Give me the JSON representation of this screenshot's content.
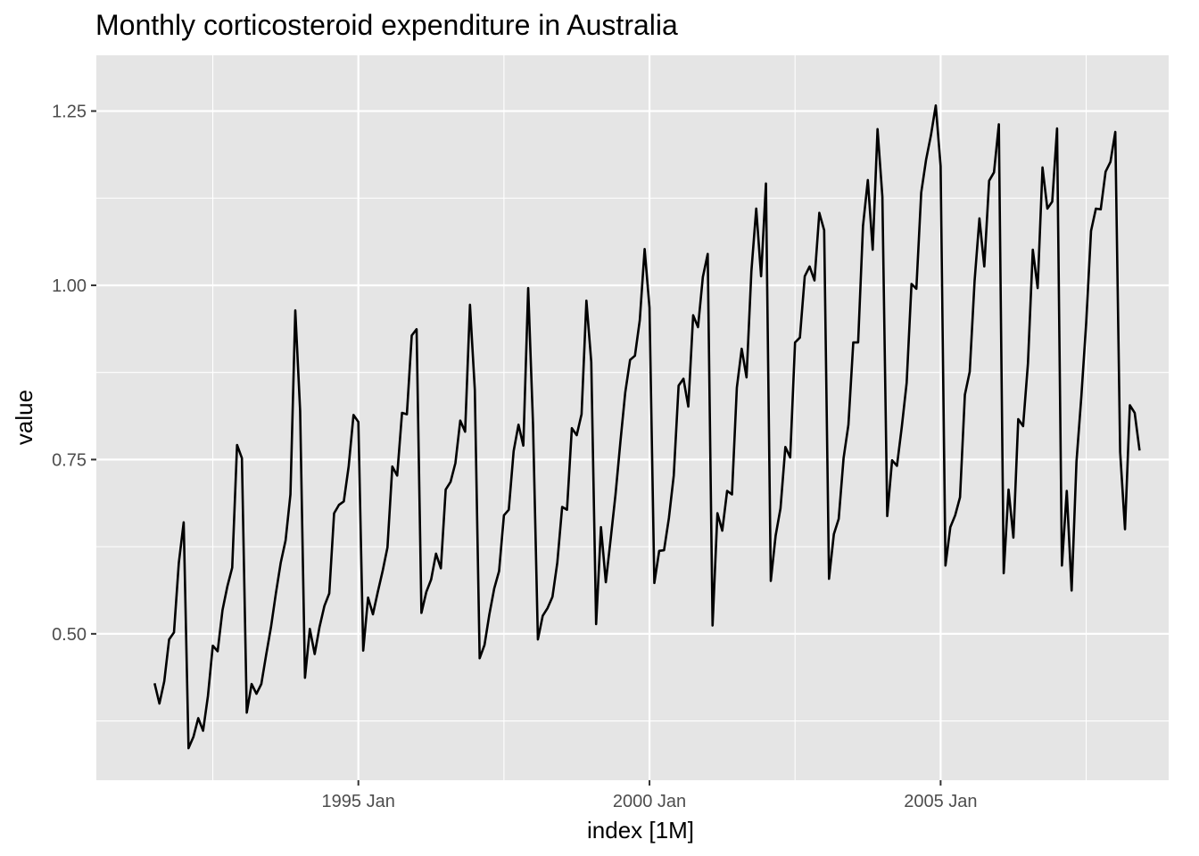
{
  "chart_data": {
    "type": "line",
    "title": "Monthly corticosteroid expenditure in Australia",
    "xlabel": "index [1M]",
    "ylabel": "value",
    "x_start": "1991 Jul",
    "x_end": "2008 Jun",
    "x_interval": "1 month",
    "xlim": [
      "1990 Jul",
      "2008 Dec"
    ],
    "ylim": [
      0.29,
      1.33
    ],
    "x_ticks": [
      {
        "date": "1995 Jan",
        "label": "1995 Jan"
      },
      {
        "date": "2000 Jan",
        "label": "2000 Jan"
      },
      {
        "date": "2005 Jan",
        "label": "2005 Jan"
      }
    ],
    "x_minor_ticks": [
      "1992 Jul",
      "1997 Jul",
      "2002 Jul",
      "2007 Jul"
    ],
    "y_ticks": [
      0.5,
      0.75,
      1.0,
      1.25
    ],
    "y_tick_labels": [
      "0.50",
      "0.75",
      "1.00",
      "1.25"
    ],
    "y_minor_ticks": [
      0.375,
      0.625,
      0.875,
      1.125
    ],
    "grid": true,
    "background": "#e5e5e5",
    "grid_color": "#ffffff",
    "line_color": "#000000",
    "series": [
      {
        "values": [
          0.429,
          0.4,
          0.432,
          0.492,
          0.502,
          0.602,
          0.66,
          0.336,
          0.352,
          0.379,
          0.361,
          0.411,
          0.483,
          0.475,
          0.534,
          0.568,
          0.595,
          0.771,
          0.752,
          0.387,
          0.428,
          0.414,
          0.428,
          0.47,
          0.51,
          0.558,
          0.602,
          0.634,
          0.7,
          0.964,
          0.82,
          0.437,
          0.507,
          0.471,
          0.51,
          0.54,
          0.558,
          0.673,
          0.685,
          0.69,
          0.74,
          0.814,
          0.804,
          0.476,
          0.552,
          0.528,
          0.56,
          0.59,
          0.624,
          0.74,
          0.727,
          0.817,
          0.815,
          0.928,
          0.937,
          0.53,
          0.56,
          0.578,
          0.615,
          0.594,
          0.707,
          0.718,
          0.745,
          0.806,
          0.79,
          0.972,
          0.85,
          0.465,
          0.484,
          0.528,
          0.565,
          0.59,
          0.67,
          0.678,
          0.762,
          0.8,
          0.77,
          0.996,
          0.8,
          0.492,
          0.526,
          0.537,
          0.553,
          0.602,
          0.682,
          0.678,
          0.795,
          0.785,
          0.815,
          0.978,
          0.89,
          0.514,
          0.653,
          0.574,
          0.636,
          0.7,
          0.775,
          0.846,
          0.893,
          0.899,
          0.95,
          1.052,
          0.968,
          0.573,
          0.619,
          0.62,
          0.666,
          0.727,
          0.856,
          0.866,
          0.826,
          0.957,
          0.94,
          1.012,
          1.045,
          0.512,
          0.673,
          0.648,
          0.705,
          0.7,
          0.853,
          0.909,
          0.868,
          1.02,
          1.11,
          1.013,
          1.146,
          0.576,
          0.641,
          0.68,
          0.768,
          0.753,
          0.918,
          0.925,
          1.013,
          1.027,
          1.007,
          1.104,
          1.079,
          0.579,
          0.643,
          0.665,
          0.752,
          0.8,
          0.918,
          0.918,
          1.085,
          1.151,
          1.051,
          1.224,
          1.127,
          0.669,
          0.749,
          0.741,
          0.797,
          0.86,
          1.002,
          0.995,
          1.133,
          1.18,
          1.215,
          1.258,
          1.171,
          0.598,
          0.653,
          0.67,
          0.696,
          0.843,
          0.876,
          1.006,
          1.096,
          1.027,
          1.15,
          1.162,
          1.231,
          0.587,
          0.707,
          0.638,
          0.808,
          0.798,
          0.888,
          1.051,
          0.996,
          1.169,
          1.11,
          1.12,
          1.225,
          0.598,
          0.705,
          0.562,
          0.747,
          0.84,
          0.946,
          1.078,
          1.11,
          1.109,
          1.163,
          1.177,
          1.22,
          0.761,
          0.65,
          0.828,
          0.817,
          0.763
        ]
      }
    ]
  }
}
